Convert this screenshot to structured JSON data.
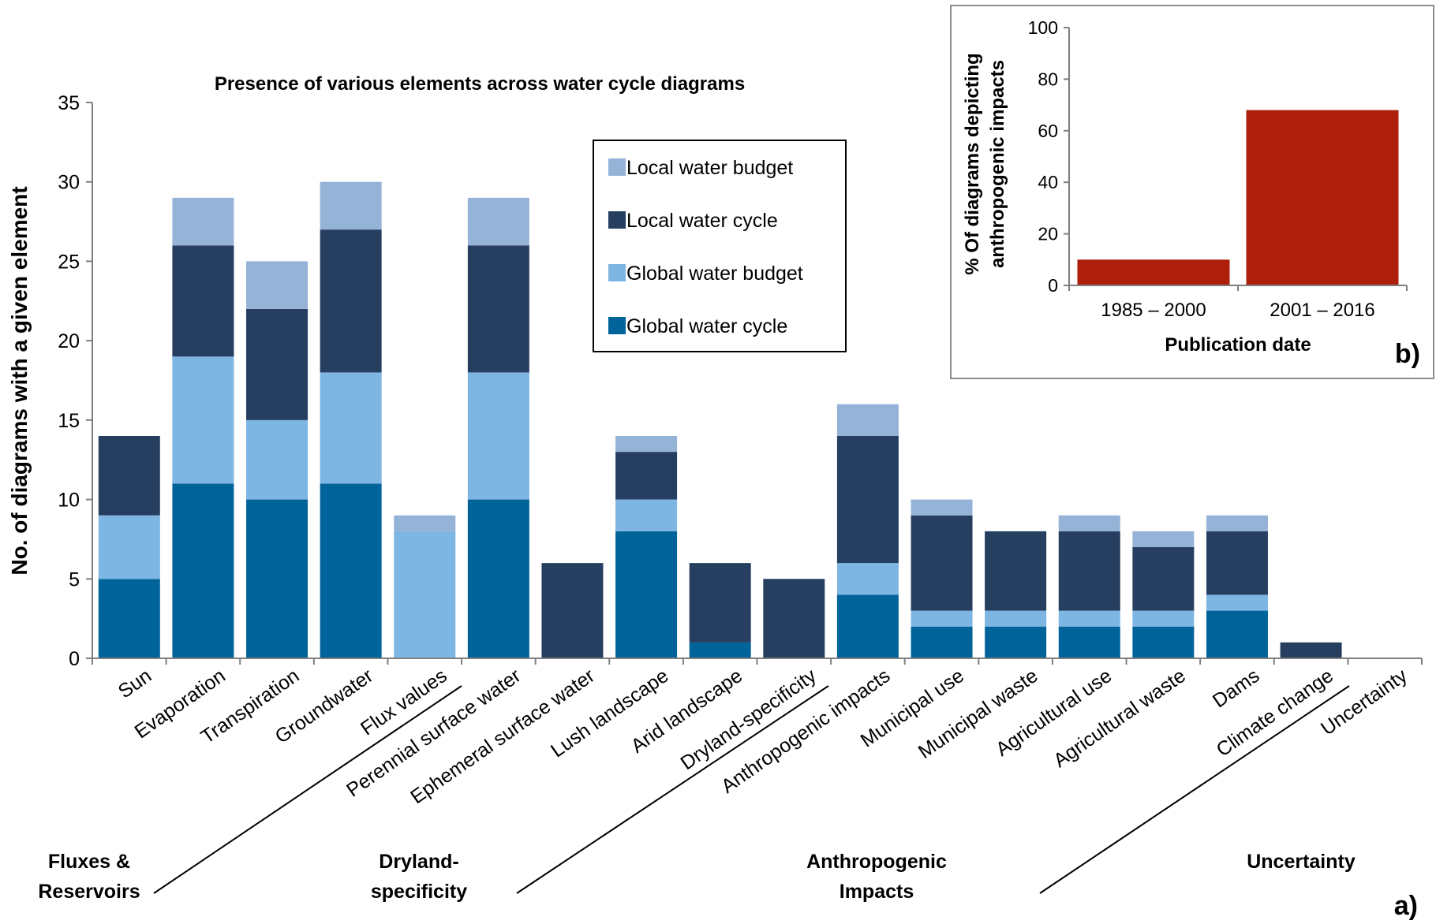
{
  "chart_data": [
    {
      "type": "bar",
      "stacked": true,
      "title": "Presence of various elements across water cycle diagrams",
      "ylabel": "No. of diagrams with a given element",
      "xlabel": "",
      "ylim": [
        0,
        35
      ],
      "yticks": [
        0,
        5,
        10,
        15,
        20,
        25,
        30,
        35
      ],
      "grid": false,
      "legend_position": "top-center",
      "panel_label": "a)",
      "categories": [
        "Sun",
        "Evaporation",
        "Transpiration",
        "Groundwater",
        "Flux values",
        "Perennial surface water",
        "Ephemeral surface water",
        "Lush landscape",
        "Arid landscape",
        "Dryland-specificity",
        "Anthropogenic impacts",
        "Municipal use",
        "Municipal waste",
        "Agricultural use",
        "Agricultural waste",
        "Dams",
        "Climate change",
        "Uncertainty"
      ],
      "series": [
        {
          "name": "Global water cycle",
          "color": "#00649b",
          "values": [
            5,
            11,
            10,
            11,
            0,
            10,
            0,
            8,
            1,
            0,
            4,
            2,
            2,
            2,
            2,
            3,
            0,
            0
          ]
        },
        {
          "name": "Global water budget",
          "color": "#7db5e3",
          "values": [
            4,
            8,
            5,
            7,
            8,
            8,
            0,
            2,
            0,
            0,
            2,
            1,
            1,
            1,
            1,
            1,
            0,
            0
          ]
        },
        {
          "name": "Local water cycle",
          "color": "#263f61",
          "values": [
            5,
            7,
            7,
            9,
            0,
            8,
            6,
            3,
            5,
            5,
            8,
            6,
            5,
            5,
            4,
            4,
            1,
            0
          ]
        },
        {
          "name": "Local water budget",
          "color": "#95b3d7",
          "values": [
            0,
            3,
            3,
            3,
            1,
            3,
            0,
            1,
            0,
            0,
            2,
            1,
            0,
            1,
            1,
            1,
            0,
            0
          ]
        }
      ],
      "groups": [
        {
          "label_lines": [
            "Fluxes &",
            "Reservoirs"
          ]
        },
        {
          "label_lines": [
            "Dryland-",
            "specificity"
          ]
        },
        {
          "label_lines": [
            "Anthropogenic",
            "Impacts"
          ]
        },
        {
          "label_lines": [
            "Uncertainty"
          ]
        }
      ]
    },
    {
      "type": "bar",
      "title": "",
      "ylabel": "% Of diagrams depicting anthropogenic impacts",
      "xlabel": "Publication date",
      "ylim": [
        0,
        100
      ],
      "yticks": [
        0,
        20,
        40,
        60,
        80,
        100
      ],
      "grid": false,
      "panel_label": "b)",
      "categories": [
        "1985 – 2000",
        "2001 – 2016"
      ],
      "values": [
        10,
        68
      ],
      "color": "#ad1f0a"
    }
  ]
}
